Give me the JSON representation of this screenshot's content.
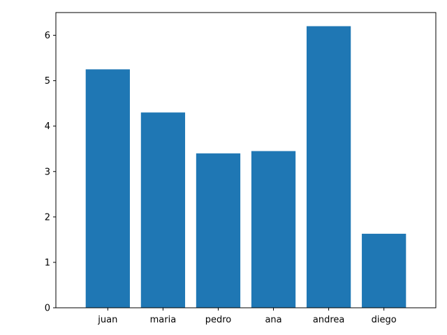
{
  "chart_data": {
    "type": "bar",
    "title": "",
    "xlabel": "",
    "ylabel": "",
    "categories": [
      "juan",
      "maria",
      "pedro",
      "ana",
      "andrea",
      "diego"
    ],
    "values": [
      5.25,
      4.3,
      3.4,
      3.45,
      6.2,
      1.63
    ],
    "ylim": [
      0,
      6.5
    ],
    "yticks": [
      0,
      1,
      2,
      3,
      4,
      5,
      6
    ],
    "grid": false,
    "legend": "none",
    "bar_color": "#1f77b4"
  }
}
